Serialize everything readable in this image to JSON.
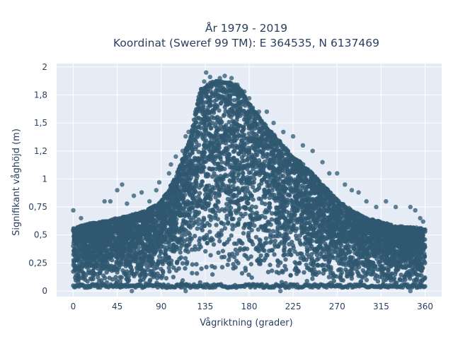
{
  "chart_data": {
    "type": "scatter",
    "title_line1": "År 1979 - 2019",
    "title_line2": "Koordinat (Sweref 99 TM): E 364535, N 6137469",
    "xlabel": "Vågriktning (grader)",
    "ylabel": "Signifikant våghöjd (m)",
    "xlim": [
      -17,
      377
    ],
    "ylim": [
      -0.05,
      2.03
    ],
    "xticks": [
      0,
      45,
      90,
      135,
      180,
      225,
      270,
      315,
      360
    ],
    "xtick_labels": [
      "0",
      "45",
      "90",
      "135",
      "180",
      "225",
      "270",
      "315",
      "360"
    ],
    "yticks": [
      0,
      0.25,
      0.5,
      0.75,
      1,
      1.25,
      1.5,
      1.75,
      2
    ],
    "ytick_labels": [
      "0",
      "0,25",
      "0,5",
      "0,75",
      "1",
      "1,2",
      "1,5",
      "1,8",
      "2"
    ],
    "grid": true,
    "marker_color": "#2f5870",
    "plot_background": "#e5ecf6",
    "envelope": {
      "x": [
        0,
        15,
        30,
        45,
        60,
        75,
        90,
        105,
        120,
        130,
        140,
        150,
        160,
        170,
        180,
        195,
        210,
        225,
        240,
        255,
        270,
        285,
        300,
        315,
        330,
        345,
        360
      ],
      "upper": [
        0.56,
        0.6,
        0.62,
        0.65,
        0.68,
        0.72,
        0.8,
        1.02,
        1.38,
        1.8,
        1.86,
        1.88,
        1.87,
        1.82,
        1.68,
        1.5,
        1.35,
        1.2,
        1.1,
        0.95,
        0.82,
        0.72,
        0.65,
        0.62,
        0.58,
        0.57,
        0.56
      ],
      "lower": [
        0.03,
        0.03,
        0.03,
        0.03,
        0.03,
        0.03,
        0.03,
        0.03,
        0.03,
        0.03,
        0.03,
        0.03,
        0.03,
        0.03,
        0.03,
        0.03,
        0.03,
        0.03,
        0.03,
        0.03,
        0.03,
        0.03,
        0.03,
        0.03,
        0.03,
        0.03,
        0.03
      ]
    },
    "outliers": [
      {
        "x": 0,
        "y": 0.72
      },
      {
        "x": 8,
        "y": 0.65
      },
      {
        "x": 30,
        "y": 0.62
      },
      {
        "x": 32,
        "y": 0.8
      },
      {
        "x": 38,
        "y": 0.8
      },
      {
        "x": 45,
        "y": 0.9
      },
      {
        "x": 50,
        "y": 0.95
      },
      {
        "x": 55,
        "y": 0.78
      },
      {
        "x": 62,
        "y": 0.85
      },
      {
        "x": 70,
        "y": 0.88
      },
      {
        "x": 78,
        "y": 0.8
      },
      {
        "x": 85,
        "y": 0.9
      },
      {
        "x": 88,
        "y": 0.97
      },
      {
        "x": 98,
        "y": 1.05
      },
      {
        "x": 100,
        "y": 1.13
      },
      {
        "x": 105,
        "y": 1.2
      },
      {
        "x": 112,
        "y": 1.25
      },
      {
        "x": 115,
        "y": 1.38
      },
      {
        "x": 118,
        "y": 1.42
      },
      {
        "x": 125,
        "y": 1.6
      },
      {
        "x": 128,
        "y": 1.7
      },
      {
        "x": 132,
        "y": 1.8
      },
      {
        "x": 134,
        "y": 1.87
      },
      {
        "x": 136,
        "y": 1.95
      },
      {
        "x": 140,
        "y": 1.91
      },
      {
        "x": 150,
        "y": 1.9
      },
      {
        "x": 155,
        "y": 1.92
      },
      {
        "x": 162,
        "y": 1.9
      },
      {
        "x": 168,
        "y": 1.84
      },
      {
        "x": 175,
        "y": 1.78
      },
      {
        "x": 180,
        "y": 1.72
      },
      {
        "x": 190,
        "y": 1.6
      },
      {
        "x": 198,
        "y": 1.6
      },
      {
        "x": 205,
        "y": 1.5
      },
      {
        "x": 215,
        "y": 1.42
      },
      {
        "x": 225,
        "y": 1.38
      },
      {
        "x": 235,
        "y": 1.3
      },
      {
        "x": 245,
        "y": 1.25
      },
      {
        "x": 255,
        "y": 1.15
      },
      {
        "x": 262,
        "y": 1.05
      },
      {
        "x": 270,
        "y": 1.05
      },
      {
        "x": 278,
        "y": 0.95
      },
      {
        "x": 285,
        "y": 0.9
      },
      {
        "x": 292,
        "y": 0.88
      },
      {
        "x": 300,
        "y": 0.8
      },
      {
        "x": 310,
        "y": 0.75
      },
      {
        "x": 320,
        "y": 0.8
      },
      {
        "x": 330,
        "y": 0.75
      },
      {
        "x": 345,
        "y": 0.75
      },
      {
        "x": 350,
        "y": 0.72
      },
      {
        "x": 355,
        "y": 0.65
      },
      {
        "x": 358,
        "y": 0.62
      },
      {
        "x": 60,
        "y": 0.0
      },
      {
        "x": 115,
        "y": 0.0
      },
      {
        "x": 345,
        "y": 0.0
      },
      {
        "x": 212,
        "y": 0.0
      }
    ]
  }
}
